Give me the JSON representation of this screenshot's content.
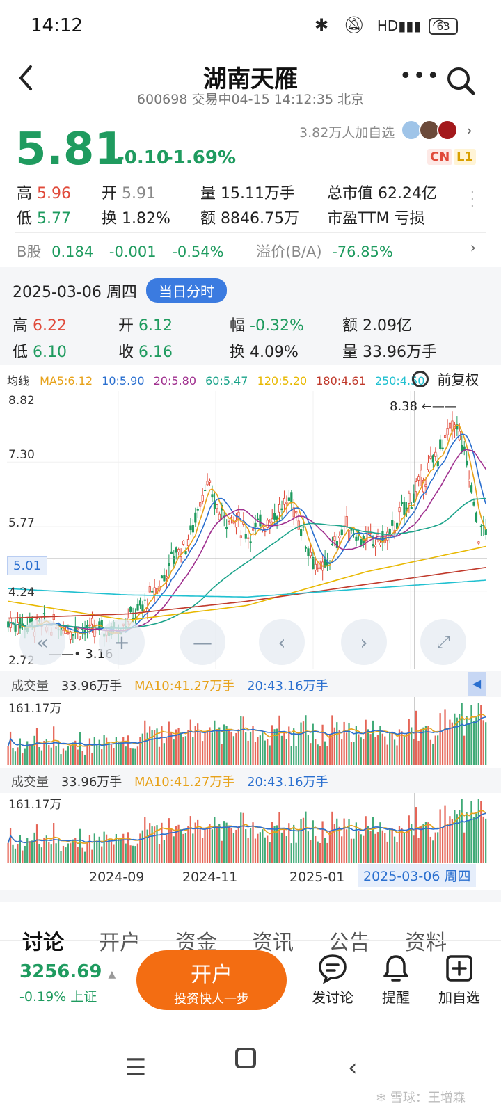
{
  "status_bar": {
    "time": "14:12",
    "battery": "63"
  },
  "header": {
    "title": "湖南天雁",
    "subtitle": "600698 交易中04-15 14:12:35 北京"
  },
  "quote": {
    "price": "5.81",
    "change": "-0.10",
    "change_pct": "-1.69%",
    "followers": "3.82万人加自选",
    "badge_cn": "CN",
    "badge_l1": "L1",
    "high_label": "高",
    "high": "5.96",
    "open_label": "开",
    "open": "5.91",
    "vol_label": "量",
    "vol": "15.11万手",
    "mktcap_label": "总市值",
    "mktcap": "62.24亿",
    "low_label": "低",
    "low": "5.77",
    "turnover_label": "换",
    "turnover": "1.82%",
    "amount_label": "额",
    "amount": "8846.75万",
    "pe_label": "市盈TTM",
    "pe": "亏损",
    "b_label": "B股",
    "b_price": "0.184",
    "b_change": "-0.001",
    "b_pct": "-0.54%",
    "premium_label": "溢价(B/A)",
    "premium": "-76.85%"
  },
  "day_detail": {
    "date": "2025-03-06 周四",
    "button": "当日分时",
    "high_label": "高",
    "high": "6.22",
    "open_label": "开",
    "open": "6.12",
    "amp_label": "幅",
    "amp": "-0.32%",
    "amount_label": "额",
    "amount": "2.09亿",
    "low_label": "低",
    "low": "6.10",
    "close_label": "收",
    "close": "6.16",
    "turnover_label": "换",
    "turnover": "4.09%",
    "vol_label": "量",
    "vol": "33.96万手"
  },
  "ma_legend": {
    "label": "均线",
    "items": [
      {
        "text": "MA5:6.12",
        "color": "#e7a21a"
      },
      {
        "text": "10:5.90",
        "color": "#2a6fcf"
      },
      {
        "text": "20:5.80",
        "color": "#a0308f"
      },
      {
        "text": "60:5.47",
        "color": "#1aa38a"
      },
      {
        "text": "120:5.20",
        "color": "#e8b800"
      },
      {
        "text": "180:4.61",
        "color": "#c0392b"
      },
      {
        "text": "250:4.50",
        "color": "#20c0d0"
      }
    ],
    "adjust": "前复权"
  },
  "kline": {
    "y_labels": [
      "8.82",
      "7.30",
      "5.77",
      "4.24",
      "2.72"
    ],
    "cursor_price": "5.01",
    "max_label": "8.38",
    "min_label": "3.16"
  },
  "volume_panel": {
    "label": "成交量",
    "vol": "33.96万手",
    "ma10": "MA10:41.27万手",
    "ma20": "20:43.16万手",
    "max": "161.17万"
  },
  "x_axis": {
    "labels": [
      "2024-09",
      "2024-11",
      "2025-01"
    ],
    "cursor_date": "2025-03-06 周四"
  },
  "tabs": [
    "讨论",
    "开户",
    "资金",
    "资讯",
    "公告",
    "资料"
  ],
  "bottom_bar": {
    "index_value": "3256.69",
    "index_change": "-0.19% 上证",
    "open_account": "开户",
    "open_account_sub": "投资快人一步",
    "discuss": "发讨论",
    "remind": "提醒",
    "add_watch": "加自选"
  },
  "watermark": "雪球：王增森"
}
